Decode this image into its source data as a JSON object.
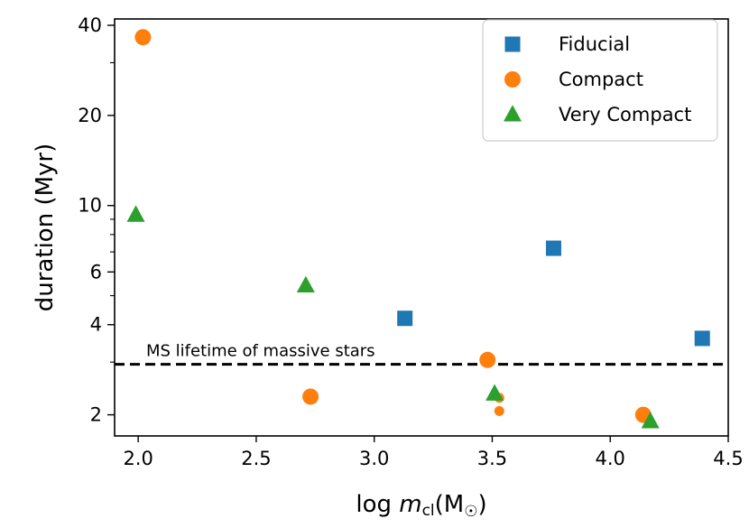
{
  "chart_data": {
    "type": "scatter",
    "xlabel": "log m_cl(M_⊙)",
    "xlabel_parts": {
      "prefix": "log ",
      "var": "m",
      "sub": "cl",
      "open": "(M",
      "sun": "☉",
      "close": ")"
    },
    "ylabel": "duration (Myr)",
    "xlim": [
      1.9,
      4.5
    ],
    "ylim": [
      1.7,
      42
    ],
    "yscale": "log",
    "x_ticks": [
      2.0,
      2.5,
      3.0,
      3.5,
      4.0,
      4.5
    ],
    "x_tick_labels": [
      "2.0",
      "2.5",
      "3.0",
      "3.5",
      "4.0",
      "4.5"
    ],
    "y_major_ticks": [
      2,
      4,
      6,
      10,
      20,
      40
    ],
    "y_tick_labels": [
      "2",
      "4",
      "6",
      "10",
      "20",
      "40"
    ],
    "y_minor_ticks": [
      3,
      5,
      7,
      8,
      9,
      30
    ],
    "legend_position": "upper-right",
    "series": [
      {
        "name": "Fiducial",
        "marker": "square",
        "color": "#1f77b4",
        "points": [
          {
            "x": 3.13,
            "y": 4.2
          },
          {
            "x": 3.76,
            "y": 7.2
          },
          {
            "x": 4.39,
            "y": 3.6
          }
        ]
      },
      {
        "name": "Compact",
        "marker": "circle",
        "color": "#ff7f0e",
        "points": [
          {
            "x": 2.02,
            "y": 36.5,
            "size": "large"
          },
          {
            "x": 2.73,
            "y": 2.3,
            "size": "large"
          },
          {
            "x": 3.48,
            "y": 3.05,
            "size": "large"
          },
          {
            "x": 3.53,
            "y": 2.28,
            "size": "small"
          },
          {
            "x": 3.53,
            "y": 2.06,
            "size": "small"
          },
          {
            "x": 4.14,
            "y": 2.0,
            "size": "large"
          }
        ]
      },
      {
        "name": "Very Compact",
        "marker": "triangle",
        "color": "#2ca02c",
        "points": [
          {
            "x": 1.99,
            "y": 9.3
          },
          {
            "x": 2.71,
            "y": 5.4
          },
          {
            "x": 3.51,
            "y": 2.35
          },
          {
            "x": 4.17,
            "y": 1.9
          }
        ]
      }
    ],
    "hline": {
      "y": 2.95,
      "style": "dashed",
      "color": "#000000",
      "label": "MS lifetime of massive stars"
    }
  }
}
